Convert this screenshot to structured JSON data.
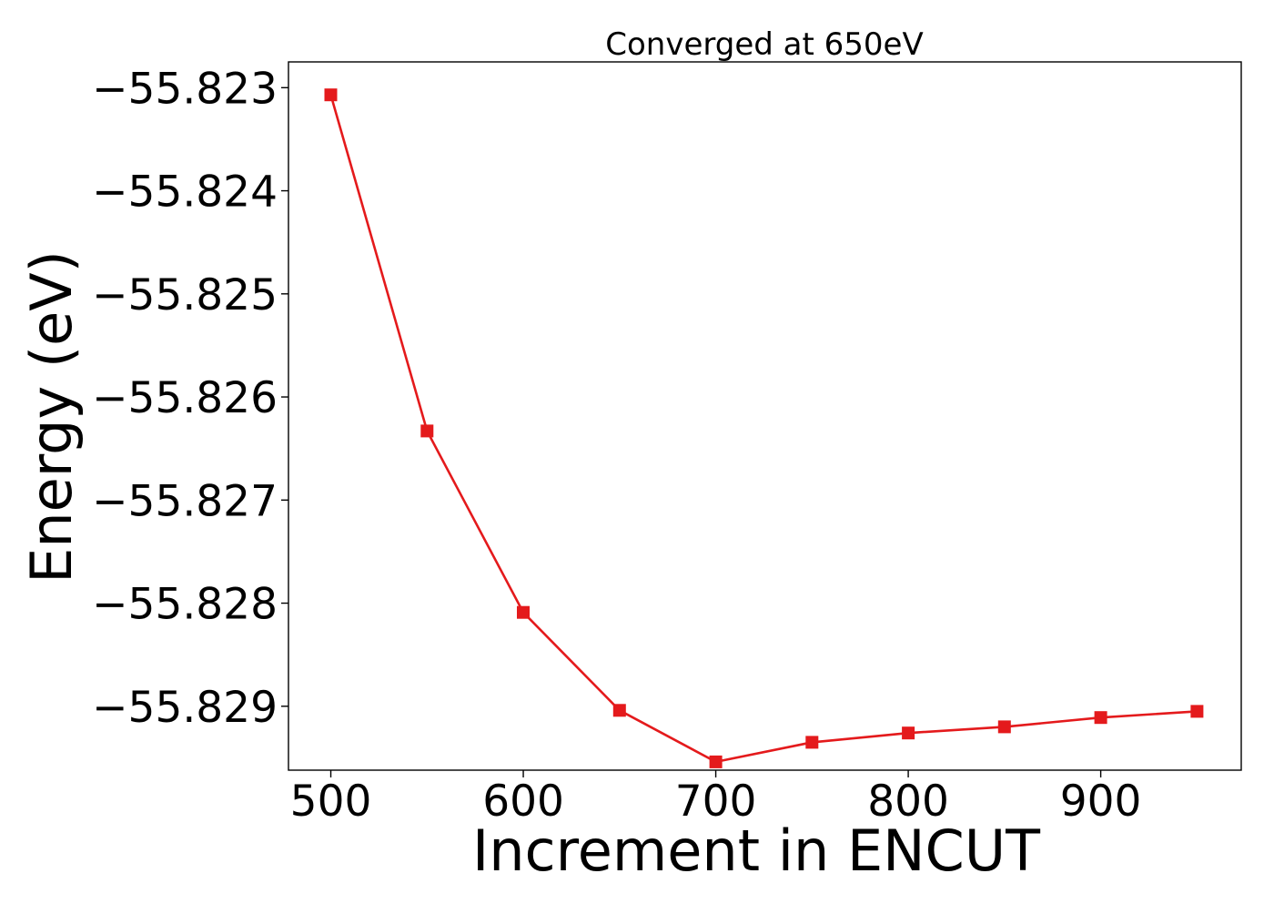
{
  "chart_data": {
    "type": "line",
    "title": "Converged at 650eV",
    "xlabel": "Increment in ENCUT",
    "ylabel": "Energy (eV)",
    "x": [
      500,
      550,
      600,
      650,
      700,
      750,
      800,
      850,
      900,
      950
    ],
    "series": [
      {
        "values": [
          -55.82307,
          -55.82633,
          -55.82809,
          -55.82904,
          -55.82954,
          -55.82935,
          -55.82926,
          -55.8292,
          -55.82911,
          -55.82905
        ],
        "color": "#e41a1c",
        "marker": "square"
      }
    ],
    "xlim": [
      478,
      973
    ],
    "ylim": [
      -55.82962,
      -55.82275
    ],
    "xticks": [
      500,
      600,
      700,
      800,
      900
    ],
    "xtick_labels": [
      "500",
      "600",
      "700",
      "800",
      "900"
    ],
    "yticks": [
      -55.823,
      -55.824,
      -55.825,
      -55.826,
      -55.827,
      -55.828,
      -55.829
    ],
    "ytick_labels": [
      "−55.823",
      "−55.824",
      "−55.825",
      "−55.826",
      "−55.827",
      "−55.828",
      "−55.829"
    ],
    "grid": false,
    "legend": "none"
  }
}
